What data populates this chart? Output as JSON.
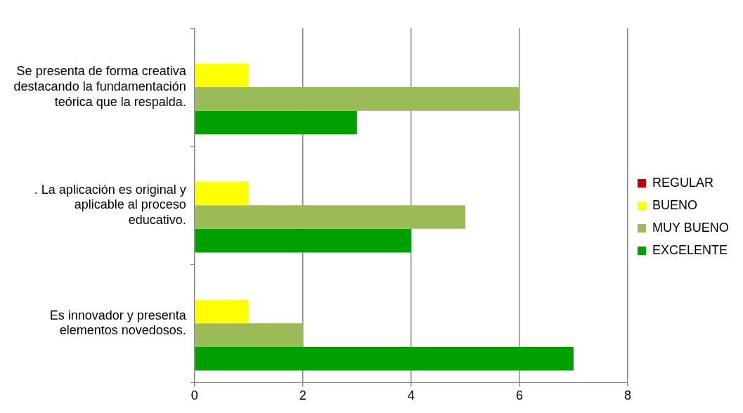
{
  "chart_data": {
    "type": "bar",
    "orientation": "horizontal",
    "categories": [
      "Se presenta de forma creativa destacando la fundamentación teórica que la respalda.",
      ". La aplicación es original y aplicable al proceso educativo.",
      "Es innovador y presenta elementos novedosos."
    ],
    "series": [
      {
        "name": "REGULAR",
        "color": "#c00000",
        "values": [
          0,
          0,
          0
        ]
      },
      {
        "name": "BUENO",
        "color": "#ffff00",
        "values": [
          1,
          1,
          1
        ]
      },
      {
        "name": "MUY BUENO",
        "color": "#9bbb59",
        "values": [
          6,
          5,
          2
        ]
      },
      {
        "name": "EXCELENTE",
        "color": "#00a000",
        "values": [
          3,
          4,
          7
        ]
      }
    ],
    "xlim": [
      0,
      8
    ],
    "xticks": [
      0,
      2,
      4,
      6,
      8
    ],
    "grid": "x",
    "legend": "right"
  }
}
